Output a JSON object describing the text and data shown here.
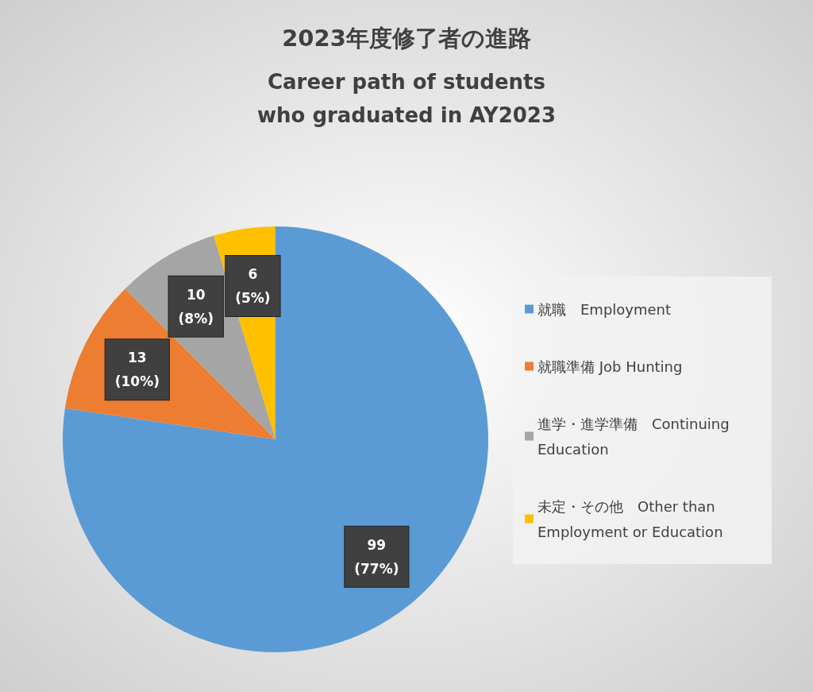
{
  "chart_data": {
    "type": "pie",
    "title": "2023年度修了者の進路",
    "subtitle": "Career path of students\nwho graduated in AY2023",
    "categories": [
      "就職　Employment",
      "就職準備 Job Hunting",
      "進学・進学準備　Continuing Education",
      "未定・その他　Other than Employment or Education"
    ],
    "values": [
      99,
      13,
      10,
      6
    ],
    "colors": [
      "#5b9bd5",
      "#ed7d31",
      "#a5a5a5",
      "#ffc000"
    ],
    "value_labels": [
      "99\n(77%)",
      "13\n(10%)",
      "10\n(8%)",
      "6\n(5%)"
    ],
    "legend": "right"
  }
}
